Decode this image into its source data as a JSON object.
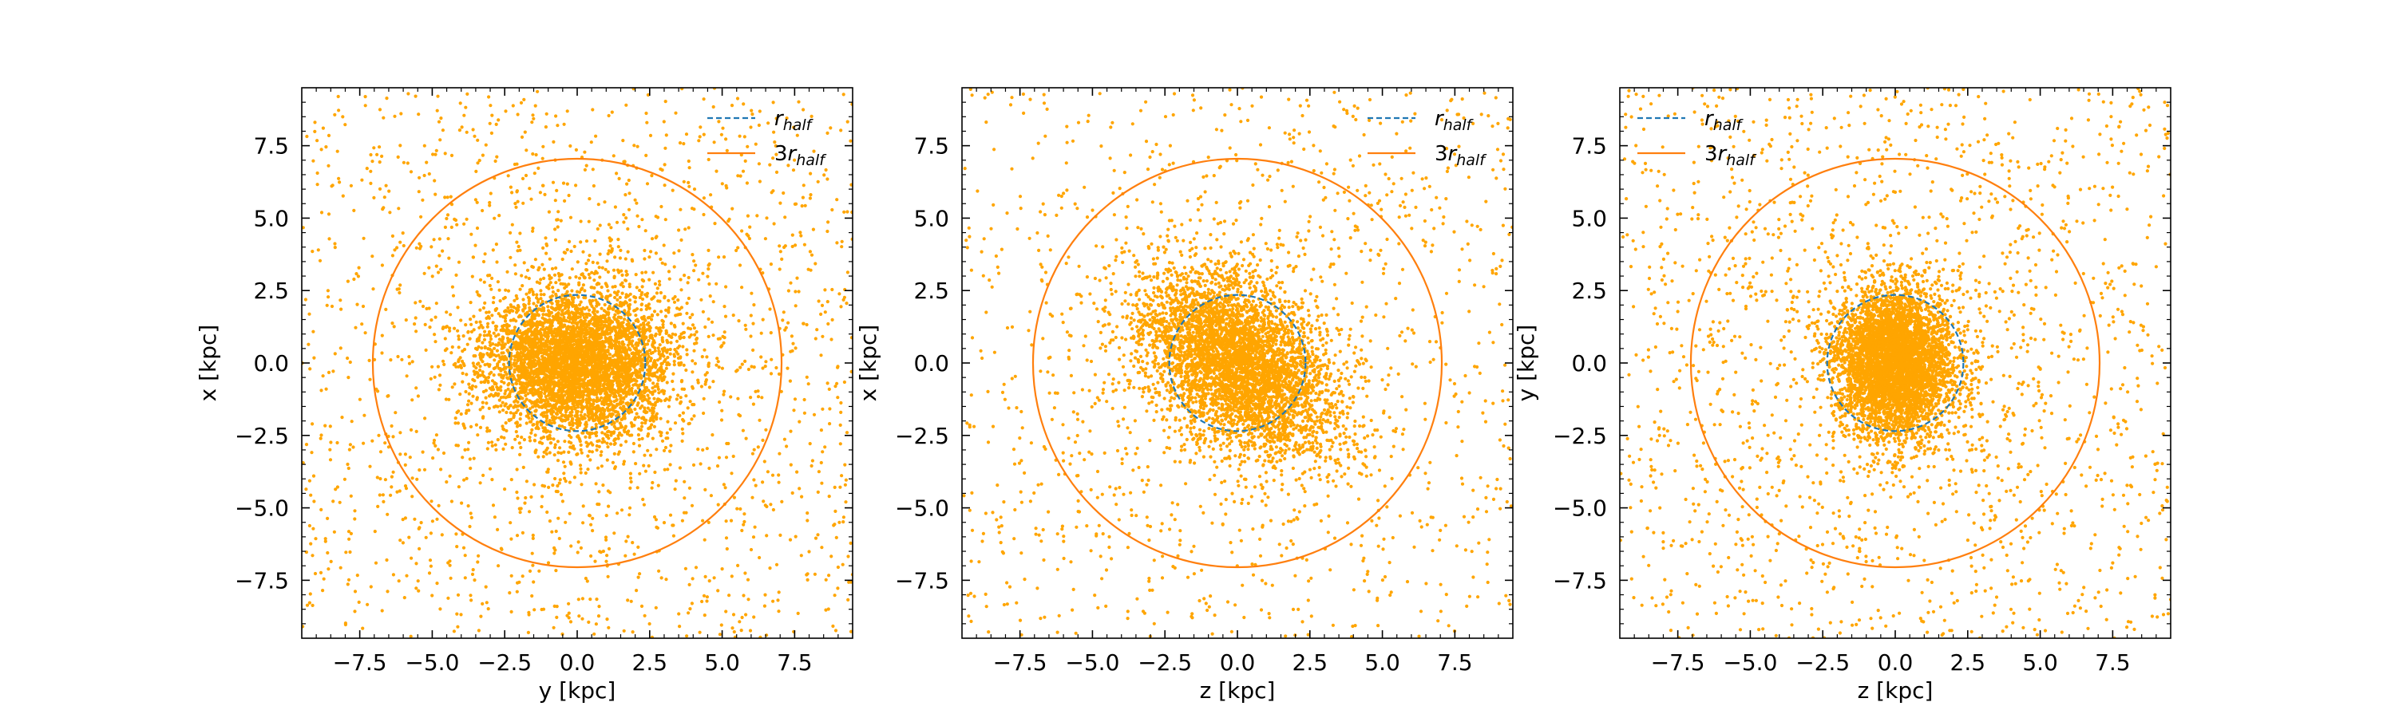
{
  "chart_data": [
    {
      "type": "scatter",
      "xlabel": "y [kpc]",
      "ylabel": "x [kpc]",
      "xlim": [
        -9.5,
        9.5
      ],
      "ylim": [
        -9.5,
        9.5
      ],
      "xticks": [
        "−7.5",
        "−5.0",
        "−2.5",
        "0.0",
        "2.5",
        "5.0",
        "7.5"
      ],
      "yticks": [
        "7.5",
        "5.0",
        "2.5",
        "0.0",
        "−2.5",
        "−5.0",
        "−7.5"
      ],
      "legend_position": "top-right",
      "r_half": 2.35,
      "r_3half": 7.05,
      "point_color": "#ffa500",
      "distribution": {
        "sigma": 1.25,
        "halo_fraction": 0.35,
        "tilt": 0.0,
        "elong": 1.25,
        "n_points": 7000,
        "seed": 11
      }
    },
    {
      "type": "scatter",
      "xlabel": "z [kpc]",
      "ylabel": "x [kpc]",
      "xlim": [
        -9.5,
        9.5
      ],
      "ylim": [
        -9.5,
        9.5
      ],
      "xticks": [
        "−7.5",
        "−5.0",
        "−2.5",
        "0.0",
        "2.5",
        "5.0",
        "7.5"
      ],
      "yticks": [
        "7.5",
        "5.0",
        "2.5",
        "0.0",
        "−2.5",
        "−5.0",
        "−7.5"
      ],
      "legend_position": "top-right",
      "r_half": 2.35,
      "r_3half": 7.05,
      "point_color": "#ffa500",
      "distribution": {
        "sigma": 1.25,
        "halo_fraction": 0.35,
        "tilt": -0.75,
        "elong": 1.6,
        "n_points": 7000,
        "seed": 23
      }
    },
    {
      "type": "scatter",
      "xlabel": "z [kpc]",
      "ylabel": "y [kpc]",
      "xlim": [
        -9.5,
        9.5
      ],
      "ylim": [
        -9.5,
        9.5
      ],
      "xticks": [
        "−7.5",
        "−5.0",
        "−2.5",
        "0.0",
        "2.5",
        "5.0",
        "7.5"
      ],
      "yticks": [
        "7.5",
        "5.0",
        "2.5",
        "0.0",
        "−2.5",
        "−5.0",
        "−7.5"
      ],
      "legend_position": "top-left",
      "r_half": 2.35,
      "r_3half": 7.05,
      "point_color": "#ffa500",
      "distribution": {
        "sigma": 1.25,
        "halo_fraction": 0.35,
        "tilt": 0.0,
        "elong": 0.8,
        "n_points": 7000,
        "seed": 37
      }
    }
  ],
  "legend": {
    "r_half_label": {
      "r": "r",
      "sub": "half"
    },
    "r_3half_label": {
      "prefix": "3",
      "r": "r",
      "sub": "half"
    },
    "r_half_color": "#1f77b4",
    "r_3half_color": "#ff7f0e"
  }
}
